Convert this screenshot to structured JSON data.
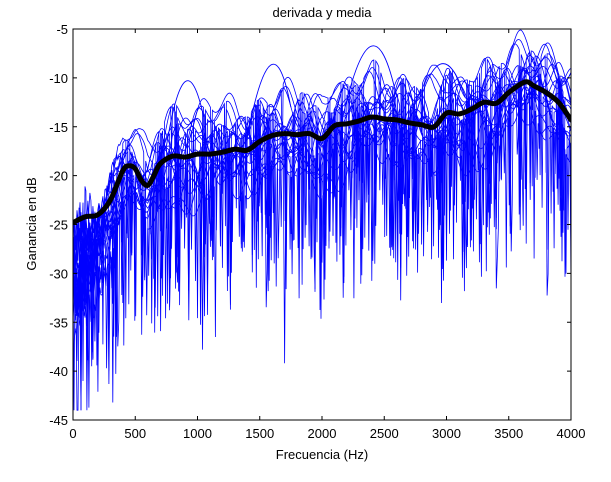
{
  "chart_data": {
    "type": "line",
    "title": "derivada y media",
    "xlabel": "Frecuencia (Hz)",
    "ylabel": "Ganancia en dB",
    "xlim": [
      0,
      4000
    ],
    "ylim": [
      -45,
      -5
    ],
    "xticks": [
      0,
      500,
      1000,
      1500,
      2000,
      2500,
      3000,
      3500,
      4000
    ],
    "yticks": [
      -5,
      -10,
      -15,
      -20,
      -25,
      -30,
      -35,
      -40,
      -45
    ],
    "xtick_labels": [
      "0",
      "500",
      "1000",
      "1500",
      "2000",
      "2500",
      "3000",
      "3500",
      "4000"
    ],
    "ytick_labels": [
      "-5",
      "-10",
      "-15",
      "-20",
      "-25",
      "-30",
      "-35",
      "-40",
      "-45"
    ],
    "grid": false,
    "colors": {
      "curves": "#0000ff",
      "mean": "#000000",
      "axes": "#000000",
      "background": "#ffffff"
    },
    "series": [
      {
        "role": "mean",
        "style": "thick-black",
        "x": [
          0,
          100,
          200,
          300,
          400,
          450,
          500,
          550,
          600,
          650,
          700,
          800,
          900,
          1000,
          1100,
          1200,
          1300,
          1400,
          1500,
          1600,
          1700,
          1800,
          1900,
          2000,
          2100,
          2200,
          2300,
          2400,
          2500,
          2600,
          2700,
          2800,
          2900,
          3000,
          3100,
          3200,
          3300,
          3400,
          3500,
          3600,
          3650,
          3700,
          3800,
          3900,
          4000
        ],
        "y": [
          -24.8,
          -24.2,
          -24.0,
          -22.5,
          -19.5,
          -19.0,
          -19.3,
          -20.5,
          -21.0,
          -20.0,
          -18.8,
          -18.0,
          -18.1,
          -17.8,
          -17.8,
          -17.6,
          -17.3,
          -17.4,
          -16.5,
          -15.9,
          -15.7,
          -15.8,
          -15.7,
          -16.2,
          -14.9,
          -14.7,
          -14.4,
          -14.0,
          -14.2,
          -14.3,
          -14.6,
          -14.8,
          -15.0,
          -13.6,
          -13.7,
          -13.2,
          -12.5,
          -12.6,
          -11.5,
          -10.6,
          -10.4,
          -10.8,
          -11.5,
          -12.5,
          -14.3
        ]
      }
    ],
    "individual_curves": [
      {
        "base": -1.5,
        "phase": 0.3,
        "ripple": 1.0
      },
      {
        "base": 1.0,
        "phase": 1.1,
        "ripple": 0.8
      },
      {
        "base": -3.0,
        "phase": 2.0,
        "ripple": 1.2
      },
      {
        "base": 2.5,
        "phase": 2.7,
        "ripple": 0.9
      },
      {
        "base": 0.0,
        "phase": 3.4,
        "ripple": 1.1
      },
      {
        "base": -0.8,
        "phase": 4.2,
        "ripple": 0.7
      },
      {
        "base": 1.8,
        "phase": 5.0,
        "ripple": 1.3
      },
      {
        "base": -2.2,
        "phase": 5.8,
        "ripple": 0.9
      },
      {
        "base": 0.6,
        "phase": 0.9,
        "ripple": 1.4
      },
      {
        "base": -1.0,
        "phase": 1.7,
        "ripple": 1.0
      },
      {
        "base": 3.2,
        "phase": 2.4,
        "ripple": 0.6
      },
      {
        "base": -2.8,
        "phase": 3.1,
        "ripple": 1.2
      },
      {
        "base": 1.4,
        "phase": 3.9,
        "ripple": 0.8
      },
      {
        "base": -0.3,
        "phase": 4.6,
        "ripple": 1.3
      },
      {
        "base": 2.0,
        "phase": 5.3,
        "ripple": 1.0
      },
      {
        "base": -1.8,
        "phase": 6.0,
        "ripple": 0.9
      },
      {
        "base": 0.9,
        "phase": 0.5,
        "ripple": 1.1
      },
      {
        "base": -3.5,
        "phase": 1.4,
        "ripple": 1.0
      },
      {
        "base": 4.0,
        "phase": 2.2,
        "ripple": 0.7
      },
      {
        "base": -0.5,
        "phase": 3.7,
        "ripple": 1.2
      }
    ],
    "prominent_arches": [
      {
        "x": [
          750,
          900,
          1050
        ],
        "y": [
          -17,
          -10.4,
          -14
        ]
      },
      {
        "x": [
          1400,
          1600,
          1750
        ],
        "y": [
          -16,
          -8.7,
          -13
        ]
      },
      {
        "x": [
          2150,
          2400,
          2600
        ],
        "y": [
          -15,
          -6.8,
          -12
        ]
      },
      {
        "x": [
          2750,
          2950,
          3150
        ],
        "y": [
          -14,
          -8.6,
          -12
        ]
      }
    ],
    "deep_notches": [
      {
        "x": 150,
        "y": -39.5
      },
      {
        "x": 270,
        "y": -39.7
      },
      {
        "x": 350,
        "y": -36.5
      },
      {
        "x": 660,
        "y": -33.5
      },
      {
        "x": 930,
        "y": -34.8
      },
      {
        "x": 1040,
        "y": -37.8
      },
      {
        "x": 1700,
        "y": -39.2
      },
      {
        "x": 2170,
        "y": -32.5
      },
      {
        "x": 2430,
        "y": -24.5
      },
      {
        "x": 3140,
        "y": -27.8
      },
      {
        "x": 3270,
        "y": -27.0
      },
      {
        "x": 4000,
        "y": -27.5
      }
    ]
  }
}
